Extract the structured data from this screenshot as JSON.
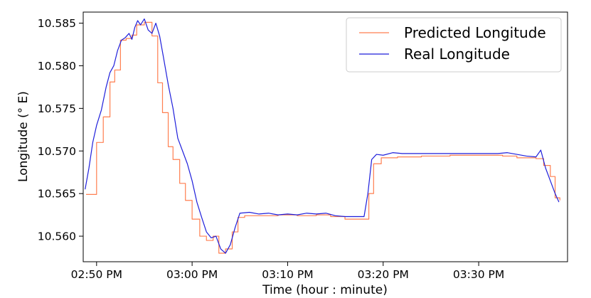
{
  "chart_data": {
    "type": "line",
    "xlabel": "Time (hour : minute)",
    "ylabel": "Longitude (° E)",
    "x_ticks": [
      {
        "label": "02:50 PM",
        "value": 0
      },
      {
        "label": "03:00 PM",
        "value": 10
      },
      {
        "label": "03:10 PM",
        "value": 20
      },
      {
        "label": "03:20 PM",
        "value": 30
      },
      {
        "label": "03:30 PM",
        "value": 40
      }
    ],
    "y_ticks": [
      "10.560",
      "10.565",
      "10.570",
      "10.575",
      "10.580",
      "10.585"
    ],
    "xlim": [
      -1.4,
      49.3
    ],
    "ylim": [
      10.557,
      10.5863
    ],
    "grid": false,
    "legend_position": "top-right",
    "series": [
      {
        "name": "Predicted Longitude",
        "color": "#ff7f50",
        "style": "step",
        "points": [
          [
            -1.1,
            10.5649
          ],
          [
            -0.6,
            10.5649
          ],
          [
            0.0,
            10.571
          ],
          [
            0.7,
            10.574
          ],
          [
            1.4,
            10.5781
          ],
          [
            1.9,
            10.5795
          ],
          [
            2.5,
            10.583
          ],
          [
            3.1,
            10.5832
          ],
          [
            3.7,
            10.5836
          ],
          [
            4.2,
            10.5848
          ],
          [
            5.0,
            10.5851
          ],
          [
            5.8,
            10.5835
          ],
          [
            6.4,
            10.578
          ],
          [
            6.9,
            10.5745
          ],
          [
            7.5,
            10.5705
          ],
          [
            8.0,
            10.569
          ],
          [
            8.7,
            10.5662
          ],
          [
            9.3,
            10.5642
          ],
          [
            10.0,
            10.562
          ],
          [
            10.8,
            10.56
          ],
          [
            11.5,
            10.5595
          ],
          [
            12.2,
            10.56
          ],
          [
            12.8,
            10.558
          ],
          [
            13.5,
            10.5585
          ],
          [
            14.2,
            10.5605
          ],
          [
            14.8,
            10.5622
          ],
          [
            15.5,
            10.5624
          ],
          [
            17.0,
            10.5624
          ],
          [
            19.0,
            10.5625
          ],
          [
            21.0,
            10.5624
          ],
          [
            23.0,
            10.5625
          ],
          [
            24.5,
            10.5623
          ],
          [
            26.0,
            10.562
          ],
          [
            28.0,
            10.562
          ],
          [
            28.5,
            10.565
          ],
          [
            29.0,
            10.5685
          ],
          [
            29.8,
            10.5692
          ],
          [
            31.5,
            10.5693
          ],
          [
            34.0,
            10.5694
          ],
          [
            37.0,
            10.5695
          ],
          [
            40.0,
            10.5695
          ],
          [
            42.5,
            10.5694
          ],
          [
            44.0,
            10.5692
          ],
          [
            46.0,
            10.5691
          ],
          [
            46.8,
            10.5683
          ],
          [
            47.5,
            10.567
          ],
          [
            48.0,
            10.5645
          ],
          [
            48.5,
            10.5642
          ]
        ]
      },
      {
        "name": "Real Longitude",
        "color": "#1f1fdb",
        "style": "line",
        "points": [
          [
            -1.2,
            10.5655
          ],
          [
            -0.8,
            10.568
          ],
          [
            -0.4,
            10.571
          ],
          [
            0.0,
            10.573
          ],
          [
            0.5,
            10.5748
          ],
          [
            1.0,
            10.5775
          ],
          [
            1.4,
            10.5792
          ],
          [
            1.8,
            10.58
          ],
          [
            2.2,
            10.5818
          ],
          [
            2.6,
            10.583
          ],
          [
            3.0,
            10.5833
          ],
          [
            3.4,
            10.5838
          ],
          [
            3.7,
            10.5831
          ],
          [
            4.0,
            10.5845
          ],
          [
            4.3,
            10.5853
          ],
          [
            4.6,
            10.5848
          ],
          [
            5.0,
            10.5855
          ],
          [
            5.4,
            10.5842
          ],
          [
            5.8,
            10.5838
          ],
          [
            6.2,
            10.585
          ],
          [
            6.6,
            10.5835
          ],
          [
            7.0,
            10.581
          ],
          [
            7.5,
            10.5778
          ],
          [
            8.0,
            10.575
          ],
          [
            8.5,
            10.5715
          ],
          [
            9.0,
            10.57
          ],
          [
            9.5,
            10.5685
          ],
          [
            10.0,
            10.5665
          ],
          [
            10.5,
            10.564
          ],
          [
            11.0,
            10.5622
          ],
          [
            11.5,
            10.5605
          ],
          [
            12.0,
            10.5598
          ],
          [
            12.5,
            10.56
          ],
          [
            13.0,
            10.5585
          ],
          [
            13.5,
            10.558
          ],
          [
            14.0,
            10.559
          ],
          [
            14.5,
            10.561
          ],
          [
            15.0,
            10.5627
          ],
          [
            16.0,
            10.5628
          ],
          [
            17.0,
            10.5626
          ],
          [
            18.0,
            10.5627
          ],
          [
            19.0,
            10.5625
          ],
          [
            20.0,
            10.5626
          ],
          [
            21.0,
            10.5625
          ],
          [
            22.0,
            10.5627
          ],
          [
            23.0,
            10.5626
          ],
          [
            24.0,
            10.5627
          ],
          [
            25.0,
            10.5624
          ],
          [
            26.0,
            10.5623
          ],
          [
            27.0,
            10.5623
          ],
          [
            28.0,
            10.5623
          ],
          [
            28.4,
            10.565
          ],
          [
            28.8,
            10.569
          ],
          [
            29.3,
            10.5696
          ],
          [
            30.0,
            10.5695
          ],
          [
            31.0,
            10.5698
          ],
          [
            32.0,
            10.5697
          ],
          [
            33.0,
            10.5697
          ],
          [
            34.0,
            10.5697
          ],
          [
            36.0,
            10.5697
          ],
          [
            38.0,
            10.5697
          ],
          [
            40.0,
            10.5697
          ],
          [
            42.0,
            10.5697
          ],
          [
            43.0,
            10.5698
          ],
          [
            44.0,
            10.5696
          ],
          [
            45.0,
            10.5694
          ],
          [
            46.0,
            10.5693
          ],
          [
            46.5,
            10.5701
          ],
          [
            47.0,
            10.568
          ],
          [
            47.5,
            10.5665
          ],
          [
            48.0,
            10.565
          ],
          [
            48.4,
            10.564
          ]
        ]
      }
    ]
  }
}
